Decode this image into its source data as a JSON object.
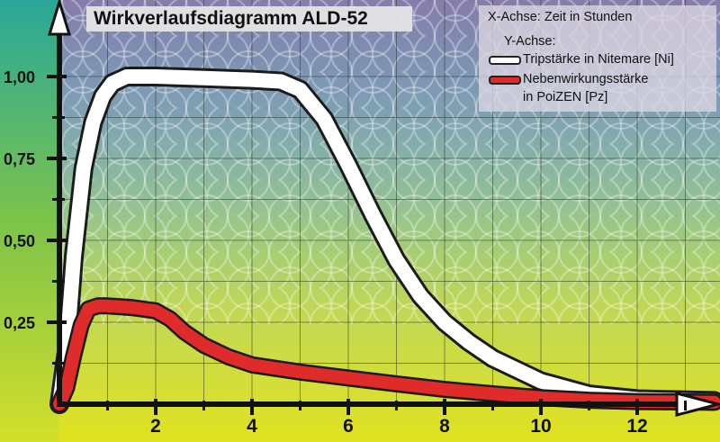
{
  "chart_data": {
    "type": "line",
    "title": "Wirkverlaufsdiagramm ALD-52",
    "xlabel": "X-Achse: Zeit in Stunden",
    "ylabel": "Y-Achse:",
    "x_ticks": [
      "2",
      "4",
      "6",
      "8",
      "10",
      "12"
    ],
    "y_ticks": [
      "0,25",
      "0,50",
      "0,75",
      "1,00"
    ],
    "xlim": [
      0,
      13.6
    ],
    "ylim": [
      0,
      1.1
    ],
    "grid": true,
    "legend_position": "top-right",
    "series": [
      {
        "name": "Tripstärke in Nitemare [Ni]",
        "color": "#ffffff",
        "x": [
          0,
          0.15,
          0.3,
          0.5,
          0.7,
          0.9,
          1.1,
          1.4,
          2.0,
          3.0,
          4.0,
          4.6,
          5.0,
          5.5,
          6.0,
          6.5,
          7.0,
          7.5,
          8.0,
          8.5,
          9.0,
          10.0,
          11.0,
          12.0,
          13.6
        ],
        "y": [
          0,
          0.16,
          0.45,
          0.72,
          0.86,
          0.94,
          0.98,
          1.0,
          1.0,
          0.995,
          0.99,
          0.985,
          0.96,
          0.87,
          0.73,
          0.58,
          0.44,
          0.33,
          0.25,
          0.19,
          0.14,
          0.07,
          0.03,
          0.015,
          0.01
        ]
      },
      {
        "name": "Nebenwirkungsstärke in PoiZEN [Pz]",
        "color": "#e02b2b",
        "x": [
          0,
          0.15,
          0.3,
          0.45,
          0.6,
          0.8,
          1.0,
          1.5,
          2.0,
          2.3,
          2.6,
          3.0,
          3.5,
          4.0,
          5.0,
          6.0,
          7.0,
          8.0,
          9.0,
          10.0,
          11.0,
          12.0,
          13.6
        ],
        "y": [
          0,
          0.05,
          0.15,
          0.24,
          0.29,
          0.3,
          0.3,
          0.295,
          0.285,
          0.26,
          0.22,
          0.18,
          0.145,
          0.12,
          0.098,
          0.08,
          0.062,
          0.045,
          0.032,
          0.02,
          0.012,
          0.008,
          0.006
        ]
      }
    ]
  },
  "legend": {
    "lines": [
      "X-Achse: Zeit in Stunden",
      "Y-Achse:",
      "Tripstärke in Nitemare [Ni]",
      "Nebenwirkungsstärke",
      "in PoiZEN [Pz]"
    ]
  }
}
